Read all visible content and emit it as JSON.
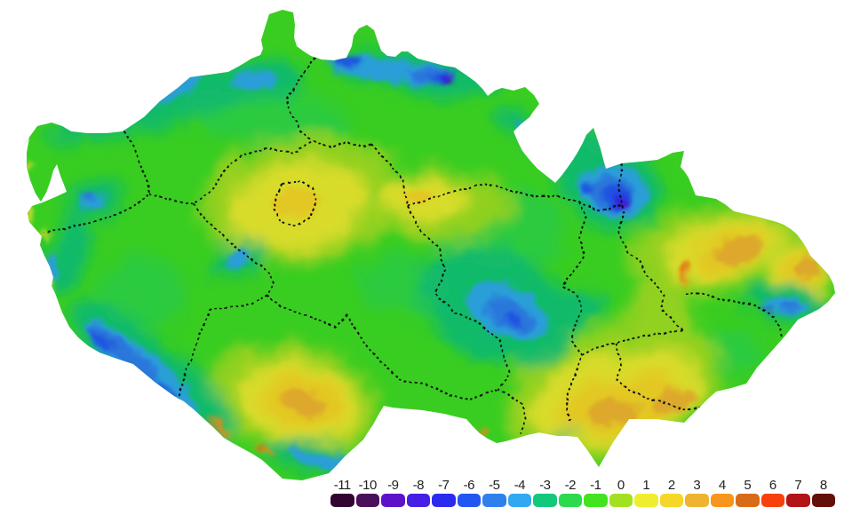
{
  "map": {
    "country": "czech-republic-temperature-raster",
    "background_color": "#ffffff",
    "boundary_color": "#0b0b0b",
    "boundary_style": "dashed",
    "base_color": "#3EDD25"
  },
  "legend": {
    "items": [
      {
        "label": "-11",
        "color": "#330431"
      },
      {
        "label": "-10",
        "color": "#4B0E5B"
      },
      {
        "label": "-9",
        "color": "#5D11C9"
      },
      {
        "label": "-8",
        "color": "#471EE4"
      },
      {
        "label": "-7",
        "color": "#2B2BEF"
      },
      {
        "label": "-6",
        "color": "#2156F2"
      },
      {
        "label": "-5",
        "color": "#2F80EC"
      },
      {
        "label": "-4",
        "color": "#31A9F0"
      },
      {
        "label": "-3",
        "color": "#12C87A"
      },
      {
        "label": "-2",
        "color": "#2CDA4D"
      },
      {
        "label": "-1",
        "color": "#41E41E"
      },
      {
        "label": "0",
        "color": "#A2E121"
      },
      {
        "label": "1",
        "color": "#EEEE2F"
      },
      {
        "label": "2",
        "color": "#F6D626"
      },
      {
        "label": "3",
        "color": "#EEB431"
      },
      {
        "label": "4",
        "color": "#F8951D"
      },
      {
        "label": "5",
        "color": "#D96A18"
      },
      {
        "label": "6",
        "color": "#F7400C"
      },
      {
        "label": "7",
        "color": "#B11316"
      },
      {
        "label": "8",
        "color": "#631009"
      }
    ]
  }
}
